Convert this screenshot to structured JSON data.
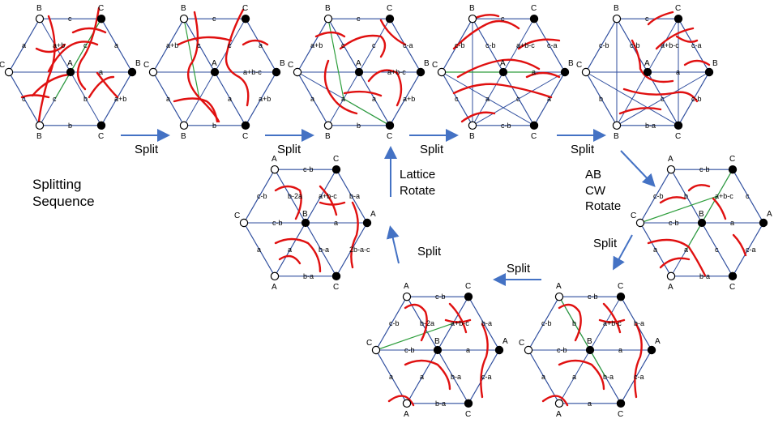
{
  "title": "Splitting\nSequence",
  "colors": {
    "edge": "#2F4E9E",
    "cut": "#E01010",
    "green": "#2E9E3C",
    "arrow": "#4472C4",
    "text": "#000000"
  },
  "step_labels": [
    "Split",
    "Split",
    "Split",
    "Split",
    "Split",
    "Split",
    "Split"
  ],
  "ab_rotate": "AB\nCW\nRotate",
  "lattice_rotate": "Lattice\nRotate",
  "panels": [
    {
      "id": "p1",
      "vertices": [
        "B",
        "C",
        "B",
        "C",
        "B",
        "C"
      ],
      "center": "A",
      "edge_labels": [
        "c",
        "a",
        "a+b",
        "b",
        "c",
        "a",
        "a+b",
        "c",
        "a",
        "b",
        "c"
      ]
    },
    {
      "id": "p2",
      "vertices": [
        "B",
        "C",
        "B",
        "C",
        "B",
        "C"
      ],
      "center": "A",
      "edge_labels": [
        "c",
        "a",
        "a+b",
        "b",
        "a",
        "a+b",
        "c",
        "c",
        "a+b-c",
        "a"
      ]
    },
    {
      "id": "p3",
      "vertices": [
        "B",
        "C",
        "B",
        "C",
        "B",
        "C"
      ],
      "center": "A",
      "edge_labels": [
        "c",
        "c-a",
        "a+b",
        "b",
        "a",
        "a+b",
        "c",
        "c",
        "a+b-c",
        "a",
        "a"
      ]
    },
    {
      "id": "p4",
      "vertices": [
        "B",
        "C",
        "B",
        "C",
        "B",
        "C"
      ],
      "center": "A",
      "edge_labels": [
        "c",
        "c-a",
        "a",
        "c-b",
        "c",
        "c-b",
        "c-b",
        "a+b-c",
        "a",
        "c",
        "a"
      ]
    },
    {
      "id": "p5",
      "vertices": [
        "B",
        "C",
        "B",
        "C",
        "B",
        "C"
      ],
      "center": "A",
      "edge_labels": [
        "c",
        "c-a",
        "c-b",
        "b-a",
        "b",
        "c-b",
        "c-b",
        "a+b-c",
        "a",
        "c"
      ]
    },
    {
      "id": "p6",
      "vertices": [
        "A",
        "C",
        "A",
        "C",
        "A",
        "C"
      ],
      "center": "B",
      "edge_labels": [
        "c-b",
        "c",
        "c-a",
        "b-a",
        "a",
        "c-b",
        "b",
        "a+b-c",
        "a",
        "c",
        "a",
        "c-b"
      ]
    },
    {
      "id": "p7",
      "vertices": [
        "A",
        "C",
        "A",
        "C",
        "A",
        "C"
      ],
      "center": "B",
      "edge_labels": [
        "c-b",
        "b-a",
        "c-a",
        "a",
        "a",
        "c-b",
        "b",
        "a+b-c",
        "a",
        "b-a",
        "a",
        "c-b"
      ]
    },
    {
      "id": "p8",
      "vertices": [
        "A",
        "C",
        "A",
        "C",
        "A",
        "C"
      ],
      "center": "B",
      "edge_labels": [
        "c-b",
        "b-a",
        "c-a",
        "b-a",
        "a",
        "c-b",
        "b-2a",
        "a+b-c",
        "a",
        "b-a",
        "a",
        "c-b"
      ]
    },
    {
      "id": "p9",
      "vertices": [
        "A",
        "C",
        "A",
        "C",
        "A",
        "C"
      ],
      "center": "B",
      "edge_labels": [
        "c-b",
        "b-a",
        "2b-a-c",
        "b-a",
        "a",
        "c-b",
        "b-2a",
        "a+b-c",
        "a",
        "b-a",
        "a",
        "c-b"
      ]
    }
  ]
}
